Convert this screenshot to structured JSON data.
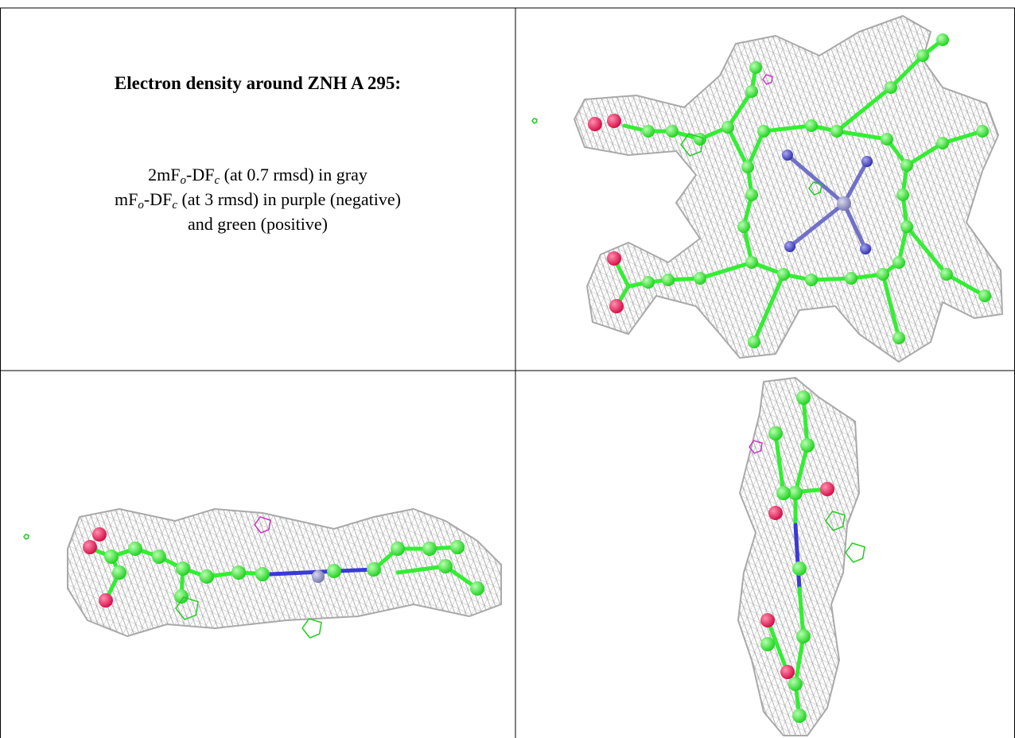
{
  "header": {
    "title": "Electron density around ZNH A 295:"
  },
  "legend": {
    "lines": [
      [
        "2mF",
        "o",
        "-DF",
        "c",
        " (at 0.7 rmsd) in gray"
      ],
      [
        "mF",
        "o",
        "-DF",
        "c",
        " (at 3 rmsd) in purple (negative)"
      ],
      [
        "and green (positive)"
      ]
    ]
  }
}
